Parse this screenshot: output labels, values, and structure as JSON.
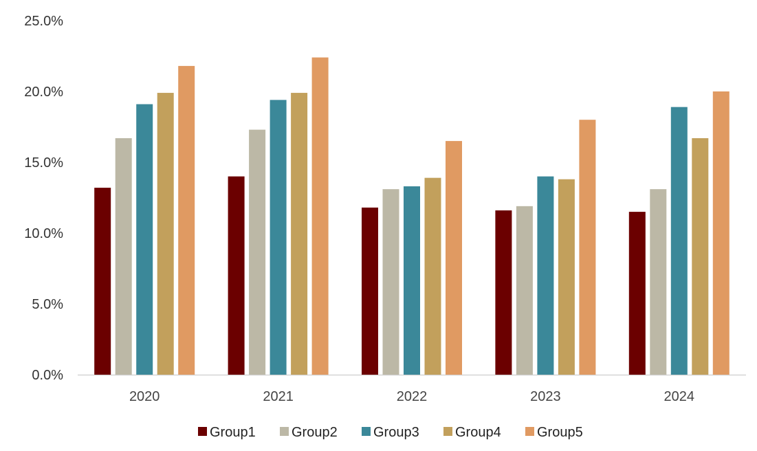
{
  "chart_data": {
    "type": "bar",
    "categories": [
      "2020",
      "2021",
      "2022",
      "2023",
      "2024"
    ],
    "series": [
      {
        "name": "Group1",
        "color": "#6b0000",
        "values": [
          13.2,
          14.0,
          11.8,
          11.6,
          11.5
        ]
      },
      {
        "name": "Group2",
        "color": "#bcb8a6",
        "values": [
          16.7,
          17.3,
          13.1,
          11.9,
          13.1
        ]
      },
      {
        "name": "Group3",
        "color": "#3b8899",
        "values": [
          19.1,
          19.4,
          13.3,
          14.0,
          18.9
        ]
      },
      {
        "name": "Group4",
        "color": "#c2a05c",
        "values": [
          19.9,
          19.9,
          13.9,
          13.8,
          16.7
        ]
      },
      {
        "name": "Group5",
        "color": "#e09a62",
        "values": [
          21.8,
          22.4,
          16.5,
          18.0,
          20.0
        ]
      }
    ],
    "y_ticks": [
      "0.0%",
      "5.0%",
      "10.0%",
      "15.0%",
      "20.0%",
      "25.0%"
    ],
    "ylim": [
      0,
      25
    ],
    "grid": false,
    "legend_position": "bottom",
    "title": "",
    "xlabel": "",
    "ylabel": ""
  }
}
